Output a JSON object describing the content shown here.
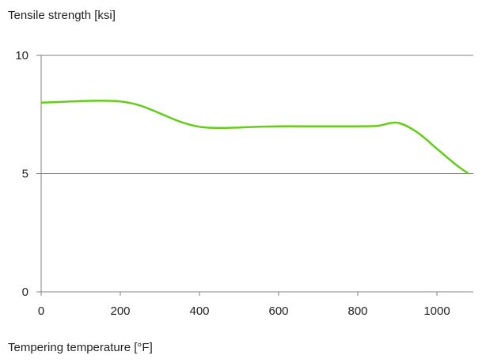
{
  "chart_data": {
    "type": "line",
    "ylabel": "Tensile strength [ksi]",
    "xlabel": "Tempering temperature [°F]",
    "xlim": [
      0,
      1100
    ],
    "ylim": [
      0,
      10
    ],
    "x_ticks": [
      0,
      200,
      400,
      600,
      800,
      1000
    ],
    "y_ticks": [
      0,
      5,
      10
    ],
    "grid": "horizontal",
    "colors": {
      "series": "#66cc1a",
      "axis": "#808080"
    },
    "series": [
      {
        "x": [
          0,
          50,
          100,
          150,
          200,
          250,
          300,
          350,
          400,
          450,
          500,
          550,
          600,
          650,
          700,
          750,
          800,
          850,
          900,
          950,
          1000,
          1050,
          1080
        ],
        "y": [
          8.0,
          8.03,
          8.07,
          8.08,
          8.05,
          7.88,
          7.55,
          7.2,
          6.98,
          6.93,
          6.95,
          6.98,
          7.0,
          7.0,
          7.0,
          7.0,
          7.0,
          7.02,
          7.15,
          6.75,
          6.05,
          5.35,
          5.0
        ]
      }
    ]
  }
}
